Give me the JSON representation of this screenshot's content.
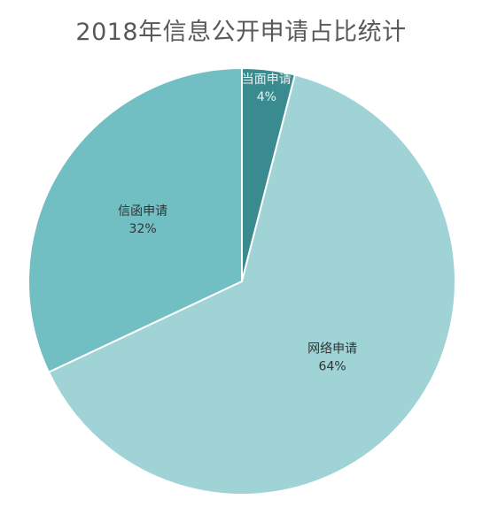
{
  "chart_data": {
    "type": "pie",
    "title": "2018年信息公开申请占比统计",
    "slices": [
      {
        "label": "当面申请",
        "percent_label": "4%",
        "value": 4,
        "color": "#3a8b8f",
        "text_color": "#e8f3f3"
      },
      {
        "label": "网络申请",
        "percent_label": "64%",
        "value": 64,
        "color": "#9fd3d6",
        "text_color": "#333333"
      },
      {
        "label": "信函申请",
        "percent_label": "32%",
        "value": 32,
        "color": "#72bfc3",
        "text_color": "#333333"
      }
    ],
    "start": "12 o'clock",
    "direction": "clockwise",
    "legend": "none"
  }
}
